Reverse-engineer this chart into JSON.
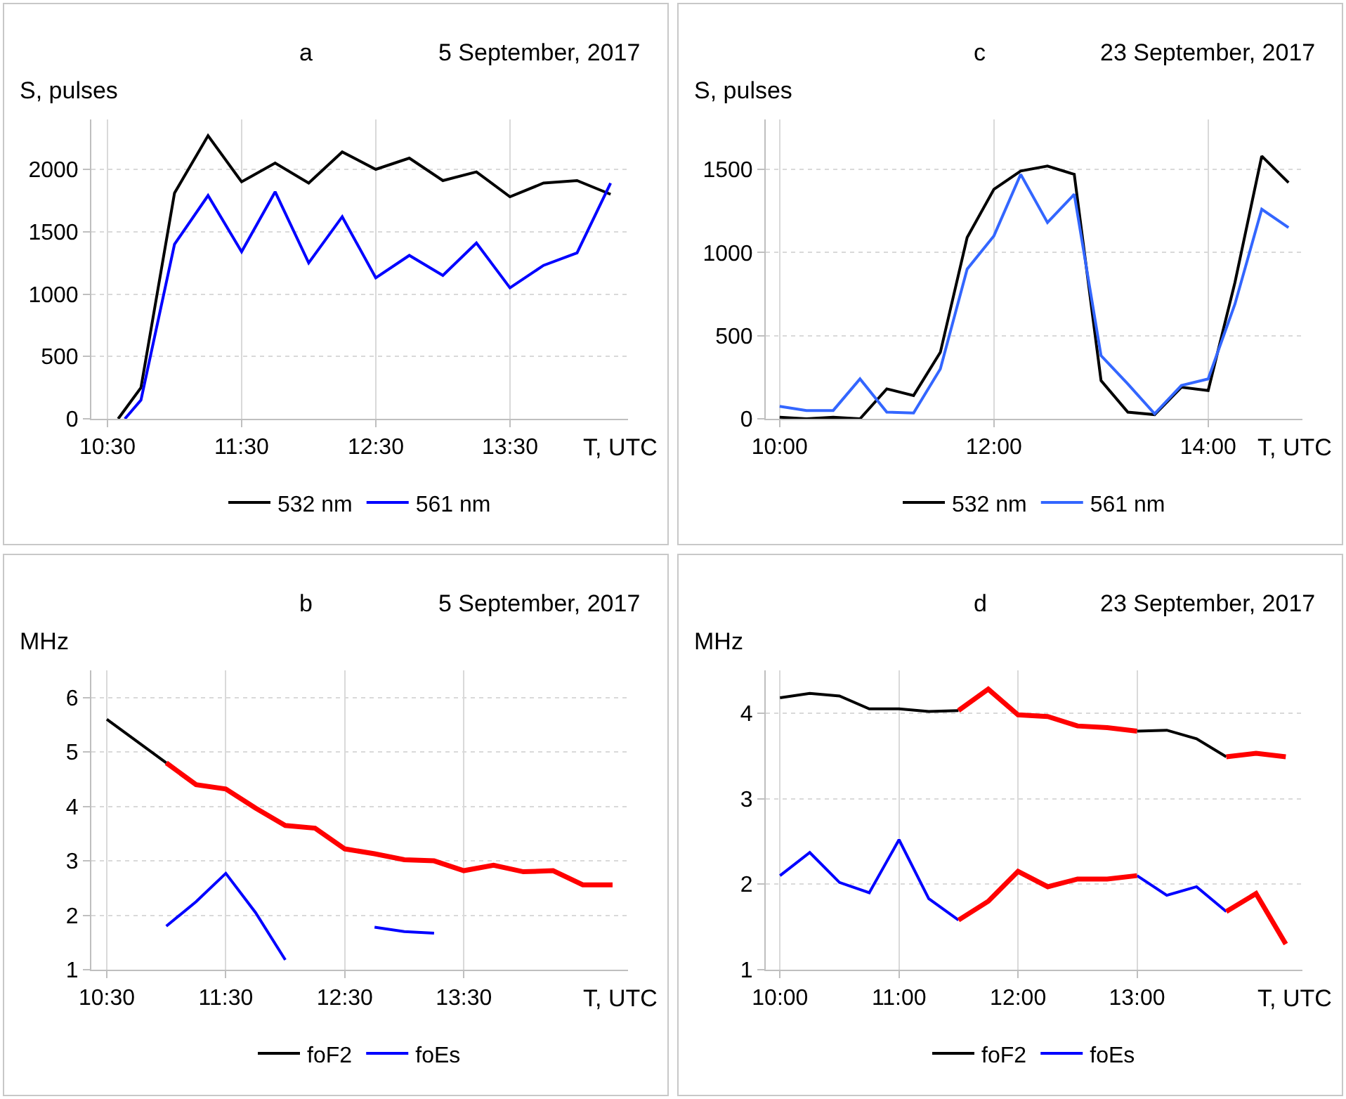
{
  "chart_data": [
    {
      "type": "line",
      "title": "a",
      "subtitle": "5 September, 2017",
      "ylabel": "S, pulses",
      "xlabel": "T, UTC",
      "xlim": [
        10.38,
        14.38
      ],
      "xticks": [
        {
          "value": 10.5,
          "label": "10:30"
        },
        {
          "value": 11.5,
          "label": "11:30"
        },
        {
          "value": 12.5,
          "label": "12:30"
        },
        {
          "value": 13.5,
          "label": "13:30"
        }
      ],
      "ylim": [
        0,
        2400
      ],
      "yticks": [
        0,
        500,
        1000,
        1500,
        2000
      ],
      "grid": true,
      "legend": "bottom",
      "series": [
        {
          "name": "532 nm",
          "color": "#000000",
          "x": [
            10.58,
            10.75,
            11,
            11.25,
            11.5,
            11.75,
            12,
            12.25,
            12.5,
            12.75,
            13,
            13.25,
            13.5,
            13.75,
            14,
            14.25
          ],
          "values": [
            0,
            250,
            1810,
            2270,
            1900,
            2050,
            1890,
            2140,
            2000,
            2090,
            1910,
            1980,
            1780,
            1890,
            1910,
            1800
          ]
        },
        {
          "name": "561 nm",
          "color": "#0000ff",
          "x": [
            10.63,
            10.75,
            11,
            11.25,
            11.5,
            11.75,
            12,
            12.25,
            12.5,
            12.75,
            13,
            13.25,
            13.5,
            13.75,
            14,
            14.25
          ],
          "values": [
            0,
            150,
            1400,
            1790,
            1340,
            1820,
            1250,
            1620,
            1130,
            1310,
            1150,
            1410,
            1050,
            1230,
            1330,
            1890
          ]
        }
      ]
    },
    {
      "type": "line",
      "title": "c",
      "subtitle": "23 September, 2017",
      "ylabel": "S, pulses",
      "xlabel": "T, UTC",
      "xlim": [
        9.87,
        14.88
      ],
      "xticks": [
        {
          "value": 10,
          "label": "10:00"
        },
        {
          "value": 12,
          "label": "12:00"
        },
        {
          "value": 14,
          "label": "14:00"
        }
      ],
      "ylim": [
        0,
        1800
      ],
      "yticks": [
        0,
        500,
        1000,
        1500
      ],
      "grid": true,
      "legend": "bottom",
      "x": [
        10,
        10.25,
        10.5,
        10.75,
        11,
        11.25,
        11.5,
        11.75,
        12,
        12.25,
        12.5,
        12.75,
        13,
        13.25,
        13.5,
        13.75,
        14,
        14.25,
        14.5,
        14.75
      ],
      "series": [
        {
          "name": "532 nm",
          "color": "#000000",
          "values": [
            10,
            0,
            10,
            0,
            180,
            140,
            400,
            1090,
            1380,
            1490,
            1520,
            1470,
            230,
            40,
            25,
            190,
            170,
            820,
            1580,
            1420
          ]
        },
        {
          "name": "561 nm",
          "color": "#3366ff",
          "values": [
            75,
            50,
            50,
            240,
            40,
            35,
            300,
            900,
            1100,
            1470,
            1180,
            1350,
            380,
            210,
            30,
            200,
            240,
            690,
            1260,
            1150
          ]
        }
      ]
    },
    {
      "type": "line",
      "title": "b",
      "subtitle": "5 September, 2017",
      "ylabel": "MHz",
      "xlabel": "T, UTC",
      "xlim": [
        10.37,
        14.88
      ],
      "xticks": [
        {
          "value": 10.5,
          "label": "10:30"
        },
        {
          "value": 11.5,
          "label": "11:30"
        },
        {
          "value": 12.5,
          "label": "12:30"
        },
        {
          "value": 13.5,
          "label": "13:30"
        }
      ],
      "ylim": [
        1,
        6.5
      ],
      "yticks": [
        1,
        2,
        3,
        4,
        5,
        6
      ],
      "grid": true,
      "legend": "bottom",
      "x": [
        10.5,
        10.75,
        11,
        11.25,
        11.5,
        11.75,
        12,
        12.25,
        12.5,
        12.75,
        13,
        13.25,
        13.5,
        13.75,
        14,
        14.25,
        14.5,
        14.75
      ],
      "series": [
        {
          "name": "foF2",
          "color": "#000000",
          "values": [
            5.6,
            5.2,
            4.8,
            null,
            null,
            null,
            null,
            null,
            null,
            null,
            null,
            null,
            null,
            null,
            null,
            null,
            null,
            null
          ]
        },
        {
          "name": "foEs",
          "color": "#0000ff",
          "values": [
            null,
            null,
            1.8,
            2.25,
            2.77,
            2.05,
            1.18,
            null,
            null,
            1.78,
            1.7,
            1.67,
            null,
            null,
            null,
            null,
            null,
            null
          ]
        },
        {
          "color": "#ff0000",
          "values": [
            null,
            null,
            4.8,
            4.4,
            4.32,
            3.97,
            3.65,
            3.6,
            3.22,
            3.13,
            3.02,
            3.0,
            2.82,
            2.92,
            2.8,
            2.82,
            2.56,
            2.56
          ]
        }
      ]
    },
    {
      "type": "line",
      "title": "d",
      "subtitle": "23 September, 2017",
      "ylabel": "MHz",
      "xlabel": "T, UTC",
      "xlim": [
        9.88,
        14.39
      ],
      "xticks": [
        {
          "value": 10,
          "label": "10:00"
        },
        {
          "value": 11,
          "label": "11:00"
        },
        {
          "value": 12,
          "label": "12:00"
        },
        {
          "value": 13,
          "label": "13:00"
        }
      ],
      "ylim": [
        1,
        4.5
      ],
      "yticks": [
        1,
        2,
        3,
        4
      ],
      "grid": true,
      "legend": "bottom",
      "x": [
        10,
        10.25,
        10.5,
        10.75,
        11,
        11.25,
        11.5,
        11.75,
        12,
        12.25,
        12.5,
        12.75,
        13,
        13.25,
        13.5,
        13.75,
        14,
        14.25
      ],
      "series": [
        {
          "name": "foF2",
          "color": "#000000",
          "values": [
            4.18,
            4.23,
            4.2,
            4.05,
            4.05,
            4.02,
            4.03,
            null,
            null,
            null,
            null,
            null,
            3.79,
            3.8,
            3.7,
            3.49,
            null,
            null
          ]
        },
        {
          "name": "foEs",
          "color": "#0000ff",
          "values": [
            2.1,
            2.37,
            2.02,
            1.9,
            2.52,
            1.83,
            1.58,
            null,
            null,
            null,
            null,
            null,
            2.1,
            1.87,
            1.97,
            1.68,
            null,
            null
          ]
        },
        {
          "color": "#ff0000",
          "values": [
            null,
            null,
            null,
            null,
            null,
            null,
            4.03,
            4.28,
            3.98,
            3.96,
            3.85,
            3.83,
            3.79,
            null,
            null,
            3.49,
            3.53,
            3.49
          ]
        },
        {
          "color": "#ff0000",
          "values": [
            null,
            null,
            null,
            null,
            null,
            null,
            1.58,
            1.8,
            2.15,
            1.97,
            2.06,
            2.06,
            2.1,
            null,
            null,
            1.68,
            1.89,
            1.3
          ]
        }
      ]
    }
  ]
}
